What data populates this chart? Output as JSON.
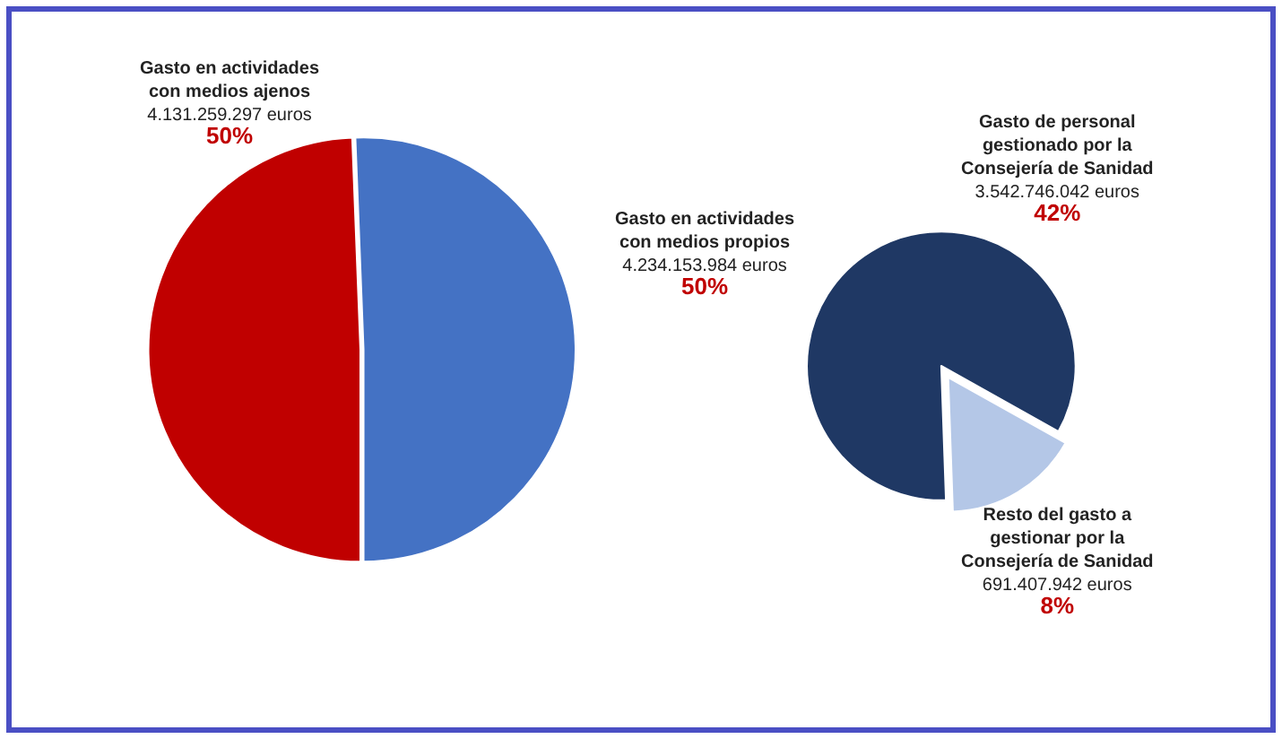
{
  "chart_data": [
    {
      "type": "pie",
      "categories": [
        "Gasto en actividades\ncon medios ajenos",
        "Gasto en actividades\ncon medios propios"
      ],
      "values": [
        4131259297,
        4234153984
      ],
      "colors": [
        "#c00000",
        "#4472c4"
      ],
      "value_labels": [
        "4.131.259.297 euros\n50%",
        "4.234.153.984 euros\n50%"
      ]
    },
    {
      "type": "pie",
      "categories": [
        "Gasto de personal\ngestionado por la\nConsejería de Sanidad",
        "Resto del gasto a\ngestionar por la\nConsejería de Sanidad"
      ],
      "values": [
        3542746042,
        691407942
      ],
      "colors": [
        "#1f3864",
        "#b4c7e7"
      ],
      "value_labels": [
        "3.542.746.042 euros\n42%",
        "691.407.942 euros\n8%"
      ]
    }
  ]
}
